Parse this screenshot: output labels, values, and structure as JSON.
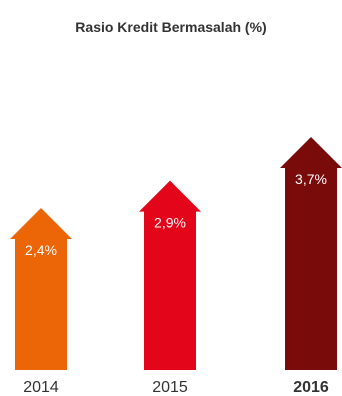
{
  "chart_data": {
    "type": "bar",
    "title": "Rasio Kredit Bermasalah (%)",
    "categories": [
      "2014",
      "2015",
      "2016"
    ],
    "values": [
      2.4,
      2.9,
      3.7
    ],
    "value_labels": [
      "2,4%",
      "2,9%",
      "3,7%"
    ],
    "bold_categories": [
      "2016"
    ],
    "colors": [
      "#ec6608",
      "#e3061b",
      "#7a0b0b"
    ],
    "bar_shape": "arrow-up",
    "grid": false,
    "legend": "none"
  }
}
